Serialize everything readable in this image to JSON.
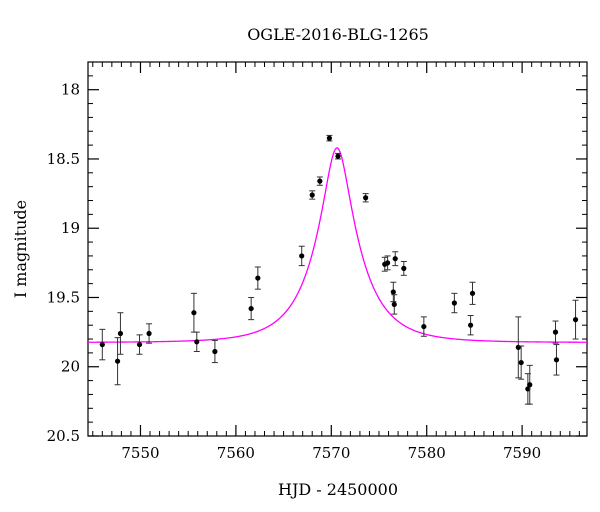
{
  "chart_data": {
    "type": "scatter",
    "title": "OGLE-2016-BLG-1265",
    "xlabel": "HJD - 2450000",
    "ylabel": "I magnitude",
    "xlim": [
      7544.5,
      7596.8
    ],
    "ylim": [
      20.5,
      17.8
    ],
    "y_inverted": true,
    "xticks": [
      7550,
      7560,
      7570,
      7580,
      7590
    ],
    "yticks": [
      18,
      18.5,
      19,
      19.5,
      20,
      20.5
    ],
    "x_minor_step": 1,
    "y_minor_step": 0.1,
    "grid": false,
    "colors": {
      "model": "#ff00ff",
      "points": "#000000",
      "frame": "#000000"
    },
    "model": {
      "name": "",
      "type": "microlensing",
      "t0": 7570.6,
      "peak_mag": 18.42,
      "baseline_mag": 19.825,
      "halfwidth": 2.95
    },
    "series": [
      {
        "name": "",
        "points": [
          {
            "x": 7546.0,
            "y": 19.84,
            "err": 0.11
          },
          {
            "x": 7547.6,
            "y": 19.96,
            "err": 0.17
          },
          {
            "x": 7547.9,
            "y": 19.76,
            "err": 0.15
          },
          {
            "x": 7549.9,
            "y": 19.84,
            "err": 0.07
          },
          {
            "x": 7550.9,
            "y": 19.76,
            "err": 0.07
          },
          {
            "x": 7555.6,
            "y": 19.61,
            "err": 0.14
          },
          {
            "x": 7555.9,
            "y": 19.82,
            "err": 0.07
          },
          {
            "x": 7557.8,
            "y": 19.89,
            "err": 0.08
          },
          {
            "x": 7561.6,
            "y": 19.58,
            "err": 0.08
          },
          {
            "x": 7562.3,
            "y": 19.36,
            "err": 0.08
          },
          {
            "x": 7566.9,
            "y": 19.2,
            "err": 0.07
          },
          {
            "x": 7568.0,
            "y": 18.76,
            "err": 0.03
          },
          {
            "x": 7568.8,
            "y": 18.66,
            "err": 0.03
          },
          {
            "x": 7569.8,
            "y": 18.35,
            "err": 0.02
          },
          {
            "x": 7570.7,
            "y": 18.48,
            "err": 0.02
          },
          {
            "x": 7573.6,
            "y": 18.78,
            "err": 0.03
          },
          {
            "x": 7575.6,
            "y": 19.26,
            "err": 0.05
          },
          {
            "x": 7575.9,
            "y": 19.25,
            "err": 0.05
          },
          {
            "x": 7576.5,
            "y": 19.46,
            "err": 0.07
          },
          {
            "x": 7576.6,
            "y": 19.55,
            "err": 0.07
          },
          {
            "x": 7576.7,
            "y": 19.22,
            "err": 0.05
          },
          {
            "x": 7577.6,
            "y": 19.29,
            "err": 0.05
          },
          {
            "x": 7579.7,
            "y": 19.71,
            "err": 0.07
          },
          {
            "x": 7582.9,
            "y": 19.54,
            "err": 0.07
          },
          {
            "x": 7584.6,
            "y": 19.7,
            "err": 0.07
          },
          {
            "x": 7584.8,
            "y": 19.47,
            "err": 0.08
          },
          {
            "x": 7589.6,
            "y": 19.86,
            "err": 0.22
          },
          {
            "x": 7589.9,
            "y": 19.97,
            "err": 0.12
          },
          {
            "x": 7590.6,
            "y": 20.16,
            "err": 0.11
          },
          {
            "x": 7590.8,
            "y": 20.13,
            "err": 0.14
          },
          {
            "x": 7593.5,
            "y": 19.75,
            "err": 0.08
          },
          {
            "x": 7593.6,
            "y": 19.95,
            "err": 0.11
          },
          {
            "x": 7595.6,
            "y": 19.66,
            "err": 0.14
          }
        ]
      }
    ]
  }
}
